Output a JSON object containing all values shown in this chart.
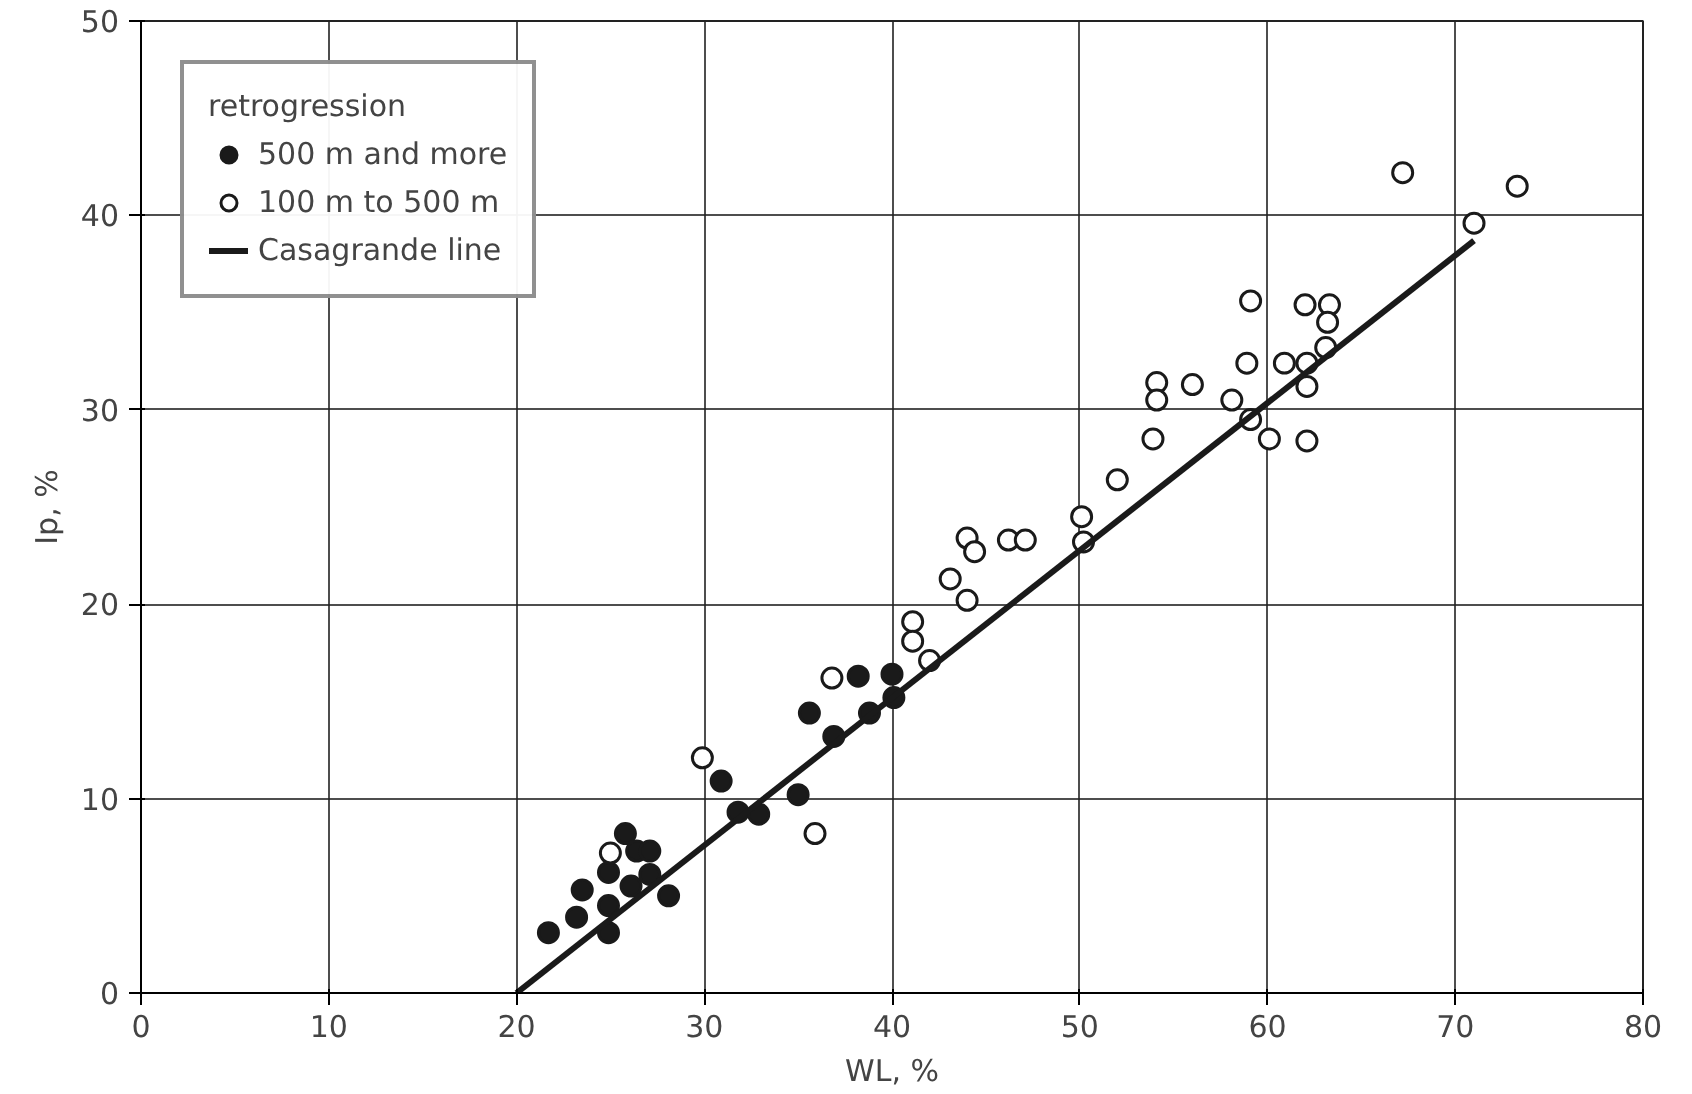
{
  "chart_data": {
    "type": "scatter",
    "xlabel": "WL, %",
    "ylabel": "Ip, %",
    "legend_title": "retrogression",
    "xlim": [
      0,
      80
    ],
    "ylim": [
      0,
      50
    ],
    "xticks": [
      0,
      10,
      20,
      30,
      40,
      50,
      60,
      70,
      80
    ],
    "yticks": [
      0,
      10,
      20,
      30,
      40,
      50
    ],
    "grid": true,
    "legend": "top left",
    "marker": "circle",
    "series": [
      {
        "name": "500 m and more",
        "color": "#1a1a1a",
        "x": [
          21.7,
          23.2,
          23.5,
          24.9,
          24.9,
          24.9,
          25.8,
          26.1,
          26.4,
          27.1,
          27.1,
          28.1,
          30.9,
          31.8,
          32.9,
          35.0,
          35.6,
          36.9,
          38.2,
          38.8,
          40.0,
          40.1
        ],
        "values": [
          3.1,
          3.9,
          5.3,
          6.2,
          4.5,
          3.1,
          8.2,
          5.5,
          7.3,
          7.3,
          6.1,
          5.0,
          10.9,
          9.3,
          9.2,
          10.2,
          14.4,
          13.2,
          16.3,
          14.4,
          16.4,
          15.2
        ]
      },
      {
        "name": "100 m to 500 m",
        "color": "#ffffff",
        "x": [
          25.0,
          29.9,
          35.9,
          36.8,
          41.1,
          41.1,
          42.0,
          44.0,
          44.4,
          43.1,
          44.0,
          46.2,
          47.1,
          50.1,
          50.2,
          52.0,
          53.9,
          54.1,
          54.1,
          56.0,
          58.1,
          59.1,
          58.9,
          59.1,
          60.1,
          60.9,
          62.0,
          62.1,
          62.1,
          62.1,
          63.3,
          63.2,
          63.1,
          67.2,
          71.0,
          73.3
        ],
        "values": [
          7.2,
          12.1,
          8.2,
          16.2,
          19.1,
          18.1,
          17.1,
          23.4,
          22.7,
          21.3,
          20.2,
          23.3,
          23.3,
          24.5,
          23.2,
          26.4,
          28.5,
          31.4,
          30.5,
          31.3,
          30.5,
          29.5,
          32.4,
          35.6,
          28.5,
          32.4,
          35.4,
          32.4,
          31.2,
          28.4,
          35.4,
          34.5,
          33.2,
          42.2,
          39.6,
          41.5
        ]
      },
      {
        "name": "Casagrande line",
        "type": "line",
        "color": "#1a1a1a",
        "x": [
          20,
          71
        ],
        "values": [
          0,
          38.7
        ],
        "marker": "none"
      }
    ]
  }
}
